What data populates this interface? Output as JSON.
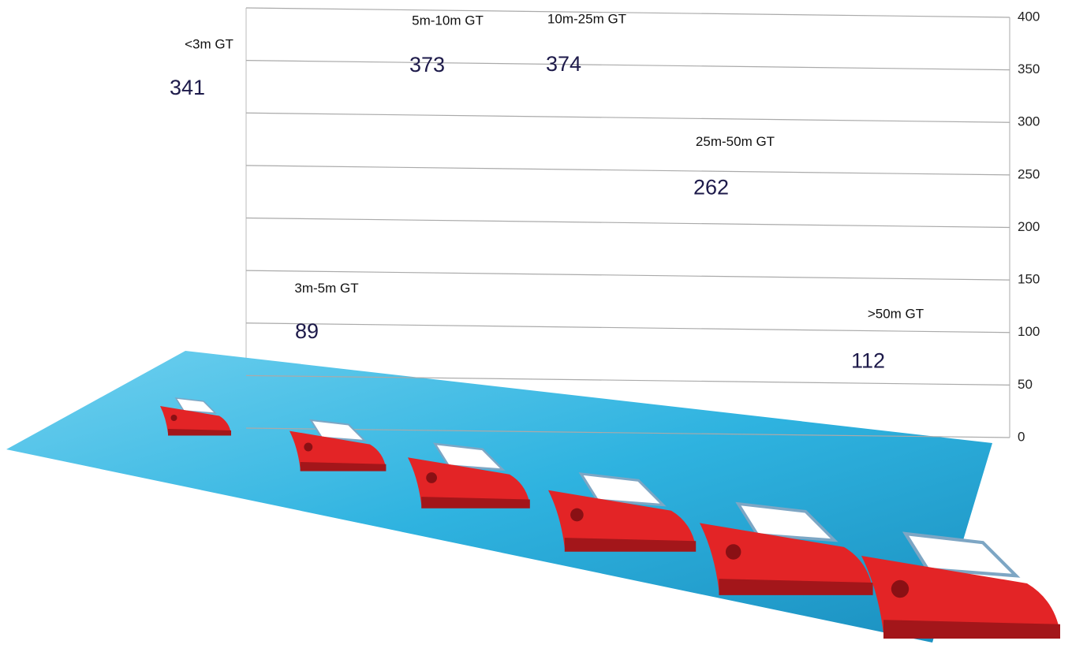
{
  "chart_data": {
    "type": "bar3d",
    "categories": [
      "<3m GT",
      "3m-5m GT",
      "5m-10m GT",
      "10m-25m GT",
      "25m-50m GT",
      ">50m GT"
    ],
    "values": [
      341,
      89,
      373,
      374,
      262,
      112
    ],
    "color": "#c9706c",
    "ylim": [
      0,
      400
    ],
    "yticks": [
      0,
      50,
      100,
      150,
      200,
      250,
      300,
      350,
      400
    ],
    "grid": true
  }
}
